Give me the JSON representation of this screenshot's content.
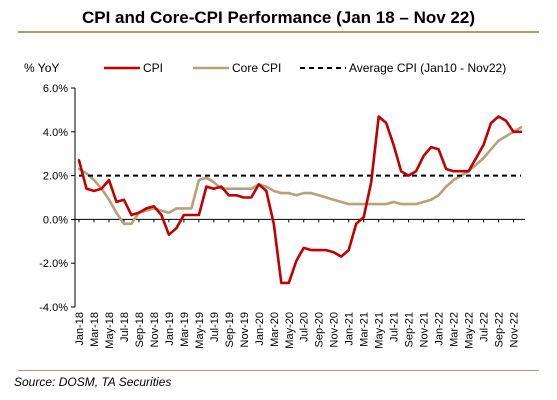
{
  "title": "CPI and Core-CPI Performance (Jan 18 – Nov 22)",
  "source": "Source: DOSM, TA Securities",
  "chart_data": {
    "type": "line",
    "ylabel": "% YoY",
    "ylim": [
      -4.0,
      6.0
    ],
    "yticks": [
      "6.0%",
      "4.0%",
      "2.0%",
      "0.0%",
      "-2.0%",
      "-4.0%"
    ],
    "ytick_values": [
      6,
      4,
      2,
      0,
      -2,
      -4
    ],
    "xtick_labels": [
      "Jan-18",
      "Mar-18",
      "May-18",
      "Jul-18",
      "Sep-18",
      "Nov-18",
      "Jan-19",
      "Mar-19",
      "May-19",
      "Jul-19",
      "Sep-19",
      "Nov-19",
      "Jan-20",
      "Mar-20",
      "May-20",
      "Jul-20",
      "Sep-20",
      "Nov-20",
      "Jan-21",
      "Mar-21",
      "May-21",
      "Jul-21",
      "Sep-21",
      "Nov-21",
      "Jan-22",
      "Mar-22",
      "May-22",
      "Jul-22",
      "Sep-22",
      "Nov-22"
    ],
    "legend_position": "top",
    "series": [
      {
        "name": "CPI",
        "color": "#c00000",
        "style": "solid",
        "values": [
          2.7,
          1.4,
          1.3,
          1.4,
          1.8,
          0.8,
          0.9,
          0.2,
          0.3,
          0.5,
          0.6,
          0.2,
          -0.7,
          -0.4,
          0.2,
          0.2,
          0.2,
          1.5,
          1.4,
          1.5,
          1.1,
          1.1,
          1.0,
          1.0,
          1.6,
          1.3,
          -0.2,
          -2.9,
          -2.9,
          -1.9,
          -1.3,
          -1.4,
          -1.4,
          -1.4,
          -1.5,
          -1.7,
          -1.4,
          -0.2,
          0.1,
          1.7,
          4.7,
          4.4,
          3.4,
          2.2,
          2.0,
          2.2,
          2.9,
          3.3,
          3.2,
          2.3,
          2.2,
          2.2,
          2.2,
          2.8,
          3.4,
          4.4,
          4.7,
          4.5,
          4.0,
          4.0
        ]
      },
      {
        "name": "Core CPI",
        "color": "#b8a078",
        "style": "solid",
        "values": [
          2.3,
          2.1,
          1.8,
          1.4,
          0.9,
          0.3,
          -0.2,
          -0.2,
          0.3,
          0.4,
          0.5,
          0.4,
          0.3,
          0.5,
          0.5,
          0.5,
          1.8,
          1.9,
          1.7,
          1.4,
          1.4,
          1.4,
          1.4,
          1.4,
          1.6,
          1.5,
          1.3,
          1.2,
          1.2,
          1.1,
          1.2,
          1.2,
          1.1,
          1.0,
          0.9,
          0.8,
          0.7,
          0.7,
          0.7,
          0.7,
          0.7,
          0.7,
          0.8,
          0.7,
          0.7,
          0.7,
          0.8,
          0.9,
          1.1,
          1.5,
          1.8,
          2.0,
          2.2,
          2.5,
          2.8,
          3.2,
          3.6,
          3.8,
          4.0,
          4.2
        ]
      },
      {
        "name": "Average CPI (Jan10 - Nov22)",
        "color": "#000000",
        "style": "dashed",
        "values": [
          2.0,
          2.0
        ]
      }
    ]
  }
}
